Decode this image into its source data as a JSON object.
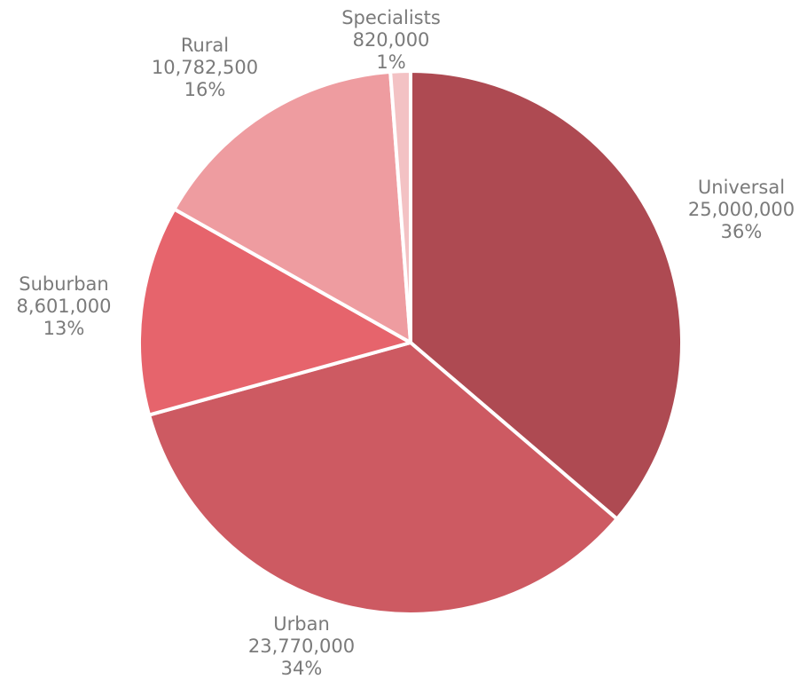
{
  "chart_data": {
    "type": "pie",
    "slices": [
      {
        "label": "Universal",
        "value": 25000000,
        "value_text": "25,000,000",
        "percent_text": "36%",
        "color": "#ae4a52"
      },
      {
        "label": "Urban",
        "value": 23770000,
        "value_text": "23,770,000",
        "percent_text": "34%",
        "color": "#cd5a62"
      },
      {
        "label": "Suburban",
        "value": 8601000,
        "value_text": "8,601,000",
        "percent_text": "13%",
        "color": "#e6646c"
      },
      {
        "label": "Rural",
        "value": 10782500,
        "value_text": "10,782,500",
        "percent_text": "16%",
        "color": "#ee9ca0"
      },
      {
        "label": "Specialists",
        "value": 820000,
        "value_text": "820,000",
        "percent_text": "1%",
        "color": "#f3c2c4"
      }
    ],
    "start_angle": "12 o'clock",
    "direction": "clockwise",
    "legend": "none",
    "label_color": "#7a7a7a"
  }
}
